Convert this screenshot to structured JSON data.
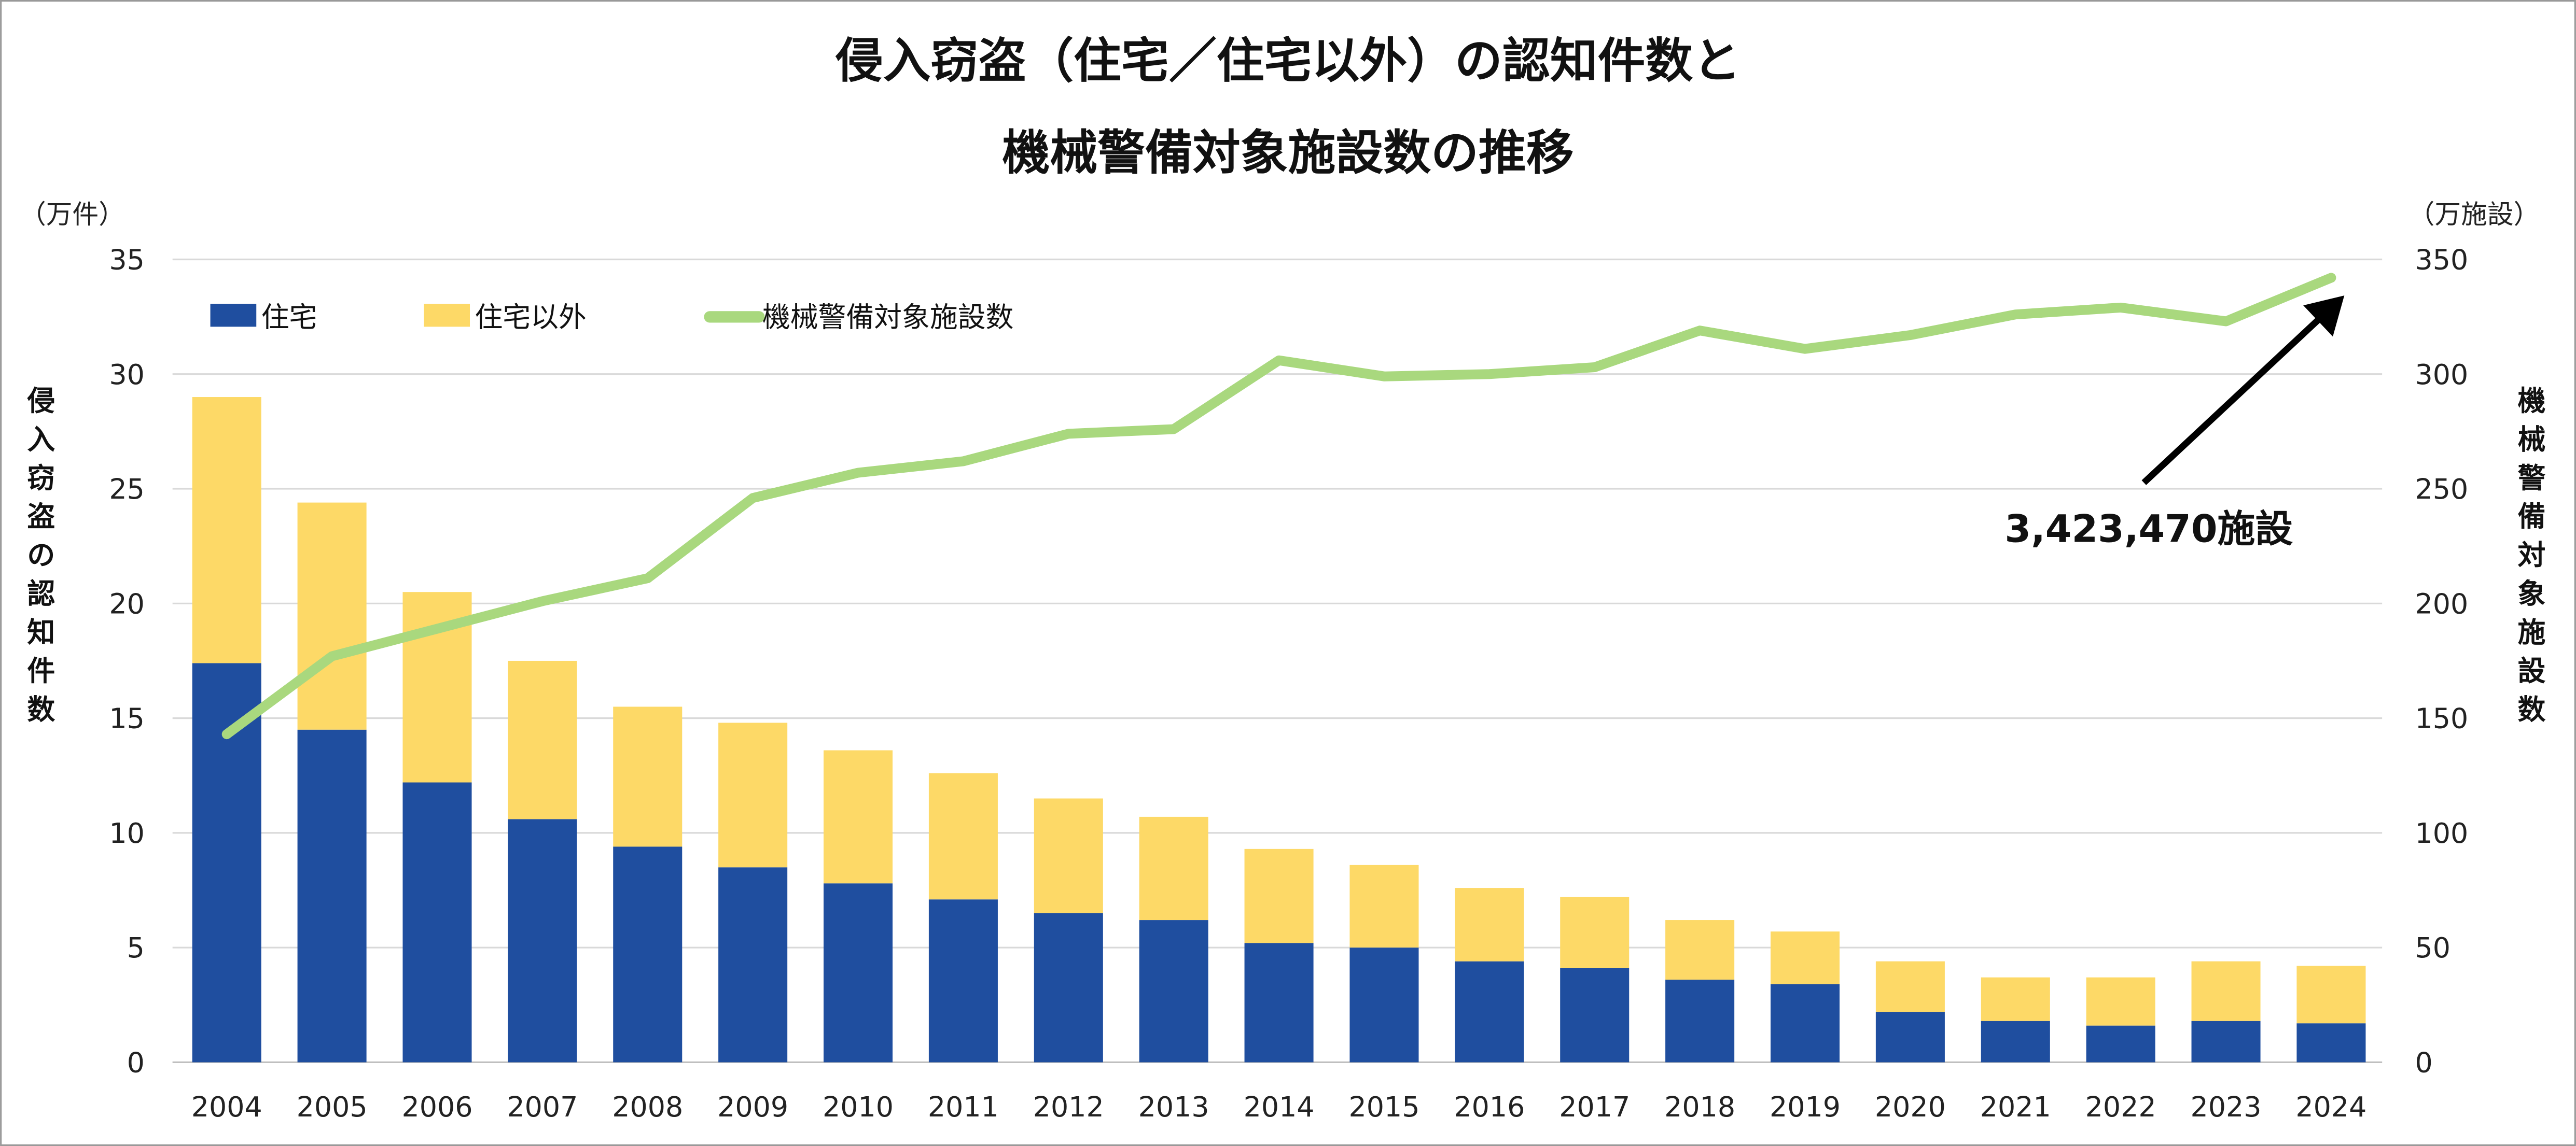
{
  "chart_data": {
    "type": "bar+line",
    "title_lines": [
      "侵入窃盗（住宅／住宅以外）の認知件数と",
      "機械警備対象施設数の推移"
    ],
    "categories": [
      "2004",
      "2005",
      "2006",
      "2007",
      "2008",
      "2009",
      "2010",
      "2011",
      "2012",
      "2013",
      "2014",
      "2015",
      "2016",
      "2017",
      "2018",
      "2019",
      "2020",
      "2021",
      "2022",
      "2023",
      "2024"
    ],
    "left_axis": {
      "unit": "（万件）",
      "label": "侵入窃盗の認知件数",
      "range": [
        0,
        35
      ],
      "ticks": [
        "0",
        "5",
        "10",
        "15",
        "20",
        "25",
        "30",
        "35"
      ]
    },
    "right_axis": {
      "unit": "（万施設）",
      "label": "機械警備対象施設数",
      "range": [
        0,
        350
      ],
      "ticks": [
        "0",
        "50",
        "100",
        "150",
        "200",
        "250",
        "300",
        "350"
      ]
    },
    "grid": true,
    "legend_position": "top-left",
    "series": [
      {
        "name": "住宅",
        "type": "stacked-bar",
        "axis": "left",
        "color": "#1F4E9F",
        "values": [
          17.4,
          14.5,
          12.2,
          10.6,
          9.4,
          8.5,
          7.8,
          7.1,
          6.5,
          6.2,
          5.2,
          5.0,
          4.4,
          4.1,
          3.6,
          3.4,
          2.2,
          1.8,
          1.6,
          1.8,
          1.7
        ]
      },
      {
        "name": "住宅以外",
        "type": "stacked-bar",
        "axis": "left",
        "color": "#FDD967",
        "values": [
          11.6,
          9.9,
          8.3,
          6.9,
          6.1,
          6.3,
          5.8,
          5.5,
          5.0,
          4.5,
          4.1,
          3.6,
          3.2,
          3.1,
          2.6,
          2.3,
          2.2,
          1.9,
          2.1,
          2.6,
          2.5
        ]
      },
      {
        "name": "機械警備対象施設数",
        "type": "line",
        "axis": "right",
        "color": "#A9D87E",
        "values": [
          143,
          177,
          189,
          201,
          211,
          246,
          257,
          262,
          274,
          276,
          306,
          299,
          300,
          303,
          319,
          311,
          317,
          326,
          329,
          323,
          342
        ]
      }
    ],
    "annotation": {
      "text": "3,423,470施設",
      "points_to": "2024"
    }
  }
}
